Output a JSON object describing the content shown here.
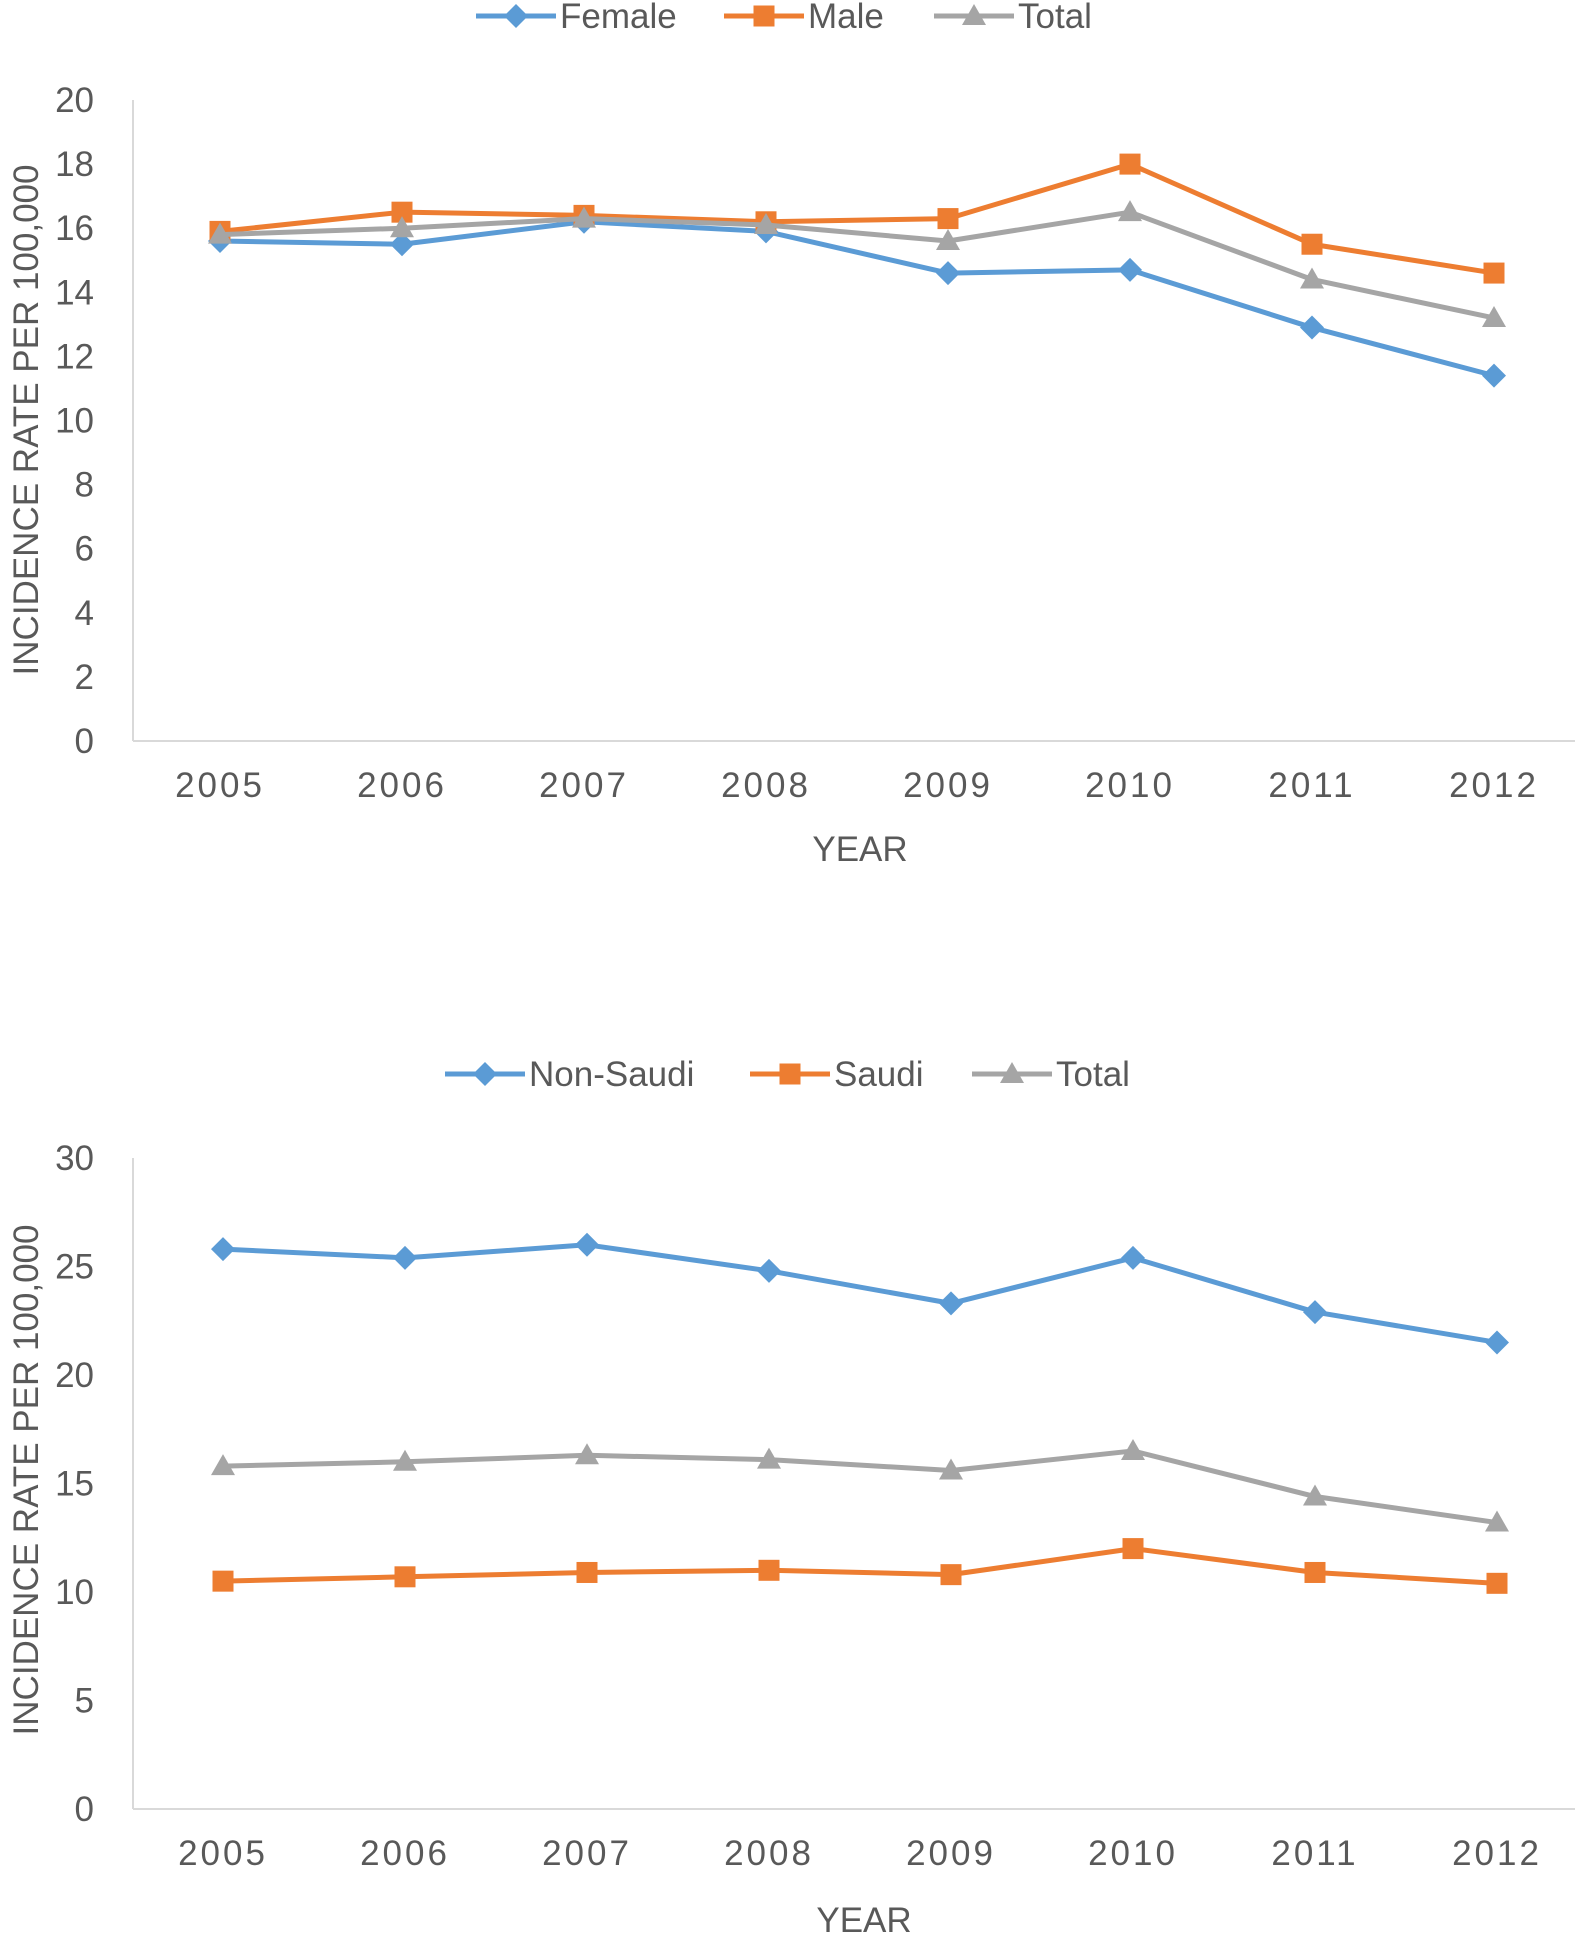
{
  "chart_data": [
    {
      "type": "line",
      "title": "",
      "xlabel": "YEAR",
      "ylabel": "INCIDENCE RATE PER 100,000",
      "ylim": [
        0,
        20
      ],
      "yticks": [
        "0",
        "2",
        "4",
        "6",
        "8",
        "10",
        "12",
        "14",
        "16",
        "18",
        "20"
      ],
      "categories": [
        "2005",
        "2006",
        "2007",
        "2008",
        "2009",
        "2010",
        "2011",
        "2012"
      ],
      "grid": false,
      "legend_position": "top",
      "series": [
        {
          "name": "Female",
          "color": "#5B9BD5",
          "marker": "diamond",
          "values": [
            15.6,
            15.5,
            16.2,
            15.9,
            14.6,
            14.7,
            12.9,
            11.4
          ]
        },
        {
          "name": "Male",
          "color": "#ED7D31",
          "marker": "square",
          "values": [
            15.9,
            16.5,
            16.4,
            16.2,
            16.3,
            18.0,
            15.5,
            14.6
          ]
        },
        {
          "name": "Total",
          "color": "#A5A5A5",
          "marker": "triangle",
          "values": [
            15.8,
            16.0,
            16.3,
            16.1,
            15.6,
            16.5,
            14.4,
            13.2
          ]
        }
      ]
    },
    {
      "type": "line",
      "title": "",
      "xlabel": "YEAR",
      "ylabel": "INCIDENCE RATE PER 100,000",
      "ylim": [
        0,
        30
      ],
      "yticks": [
        "0",
        "5",
        "10",
        "15",
        "20",
        "25",
        "30"
      ],
      "categories": [
        "2005",
        "2006",
        "2007",
        "2008",
        "2009",
        "2010",
        "2011",
        "2012"
      ],
      "grid": false,
      "legend_position": "top",
      "series": [
        {
          "name": "Non-Saudi",
          "color": "#5B9BD5",
          "marker": "diamond",
          "values": [
            25.8,
            25.4,
            26.0,
            24.8,
            23.3,
            25.4,
            22.9,
            21.5
          ]
        },
        {
          "name": "Saudi",
          "color": "#ED7D31",
          "marker": "square",
          "values": [
            10.5,
            10.7,
            10.9,
            11.0,
            10.8,
            12.0,
            10.9,
            10.4
          ]
        },
        {
          "name": "Total",
          "color": "#A5A5A5",
          "marker": "triangle",
          "values": [
            15.8,
            16.0,
            16.3,
            16.1,
            15.6,
            16.5,
            14.4,
            13.2
          ]
        }
      ]
    }
  ]
}
